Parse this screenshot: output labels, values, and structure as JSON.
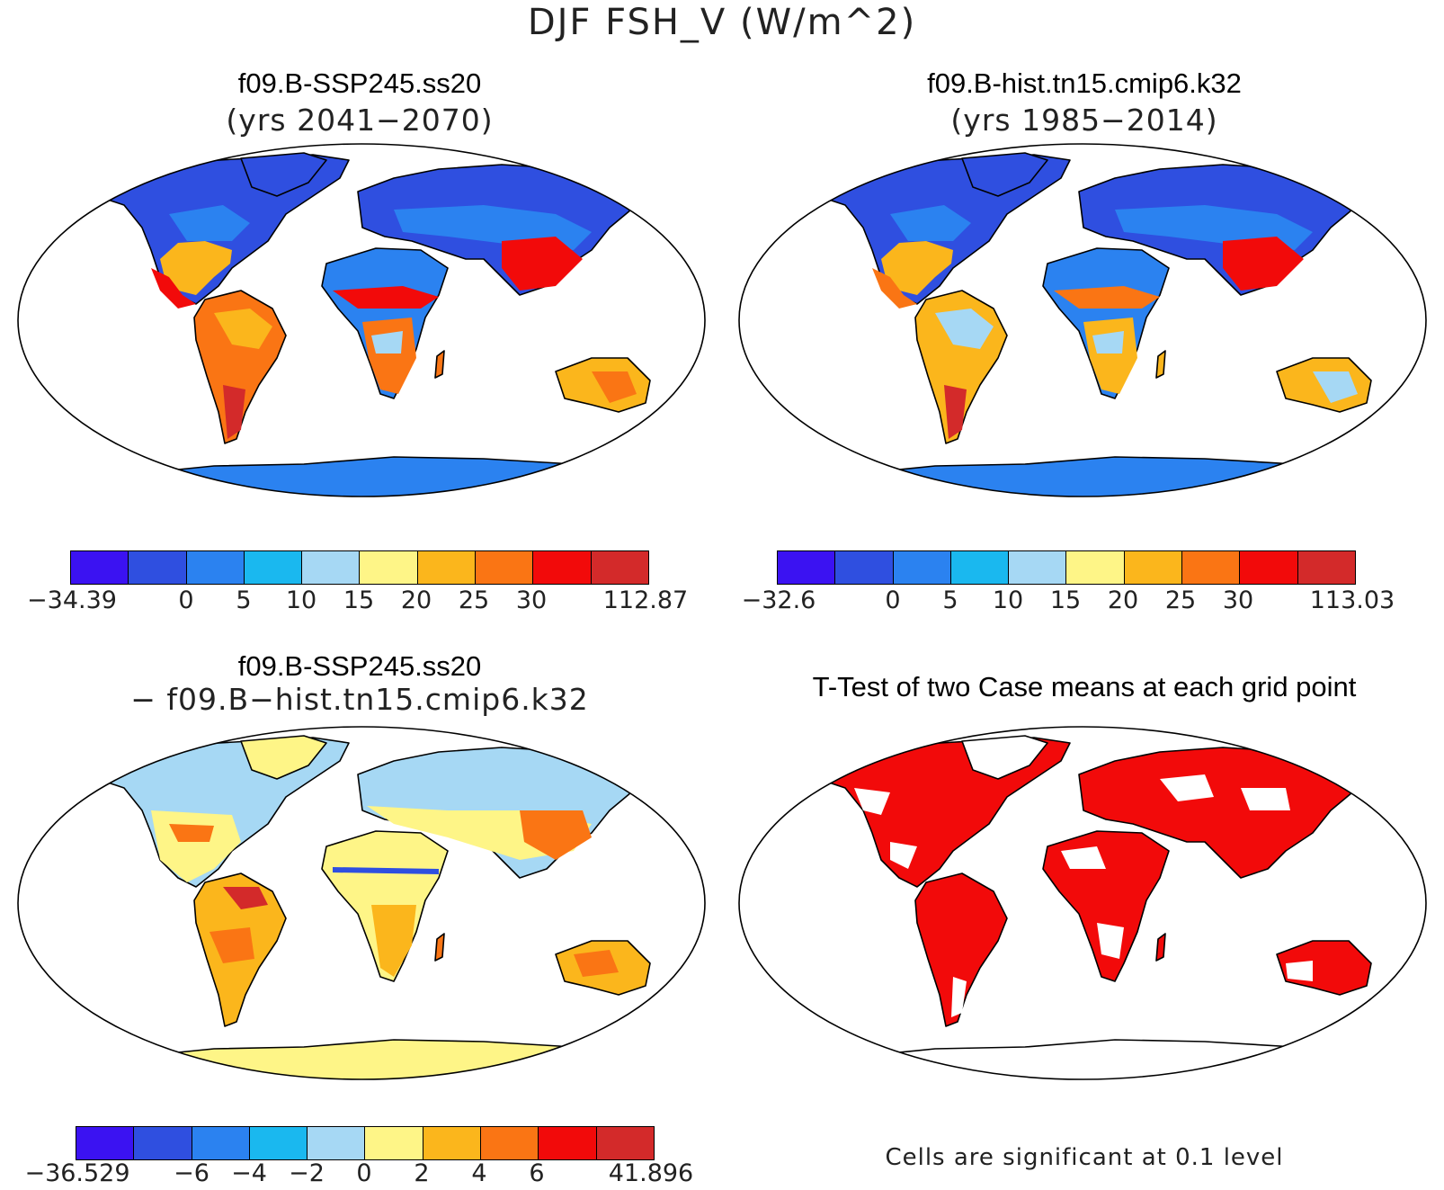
{
  "title": "DJF FSH_V (W/m^2)",
  "colors": {
    "scale": [
      "#3b12f2",
      "#2f4fe0",
      "#2b82f0",
      "#1ab8ef",
      "#a6d8f4",
      "#fef587",
      "#fbb61c",
      "#fa7514",
      "#f20a0a",
      "#d32a2a"
    ],
    "significant": "#f20a0a"
  },
  "panels": [
    {
      "title": "f09.B-SSP245.ss20",
      "subtitle": "(yrs 2041−2070)",
      "colorbar": {
        "ticks": [
          "−34.39",
          "0",
          "5",
          "10",
          "15",
          "20",
          "25",
          "30",
          "112.87"
        ]
      }
    },
    {
      "title": "f09.B-hist.tn15.cmip6.k32",
      "subtitle": "(yrs 1985−2014)",
      "colorbar": {
        "ticks": [
          "−32.6",
          "0",
          "5",
          "10",
          "15",
          "20",
          "25",
          "30",
          "113.03"
        ]
      }
    },
    {
      "title": "f09.B-SSP245.ss20",
      "subtitle": "− f09.B−hist.tn15.cmip6.k32",
      "colorbar": {
        "ticks": [
          "−36.529",
          "−6",
          "−4",
          "−2",
          "0",
          "2",
          "4",
          "6",
          "41.896"
        ]
      }
    },
    {
      "title": "T-Test of two Case means at each grid point",
      "footnote": "Cells are significant at 0.1 level"
    }
  ]
}
